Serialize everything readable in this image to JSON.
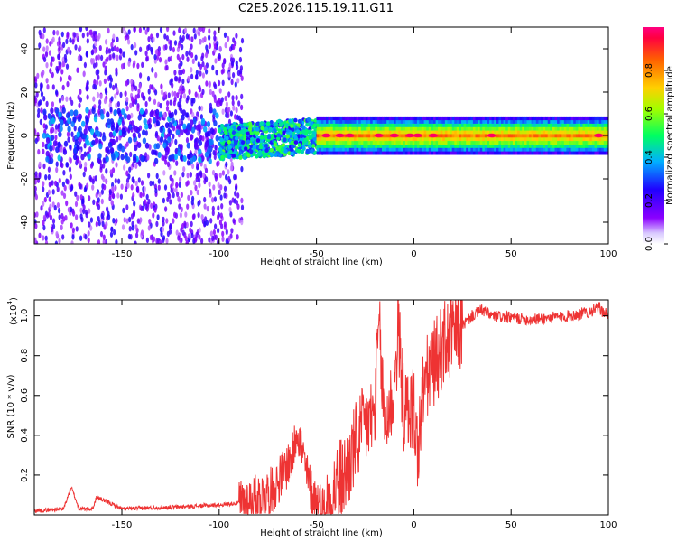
{
  "page": {
    "title": "C2E5.2026.115.19.11.G11"
  },
  "chart_data": [
    {
      "type": "heatmap",
      "xlabel": "Height of straight line (km)",
      "ylabel": "Frequency (Hz)",
      "xlim": [
        -195,
        100
      ],
      "ylim": [
        -50,
        50
      ],
      "xticks": [
        -150,
        -100,
        -50,
        0,
        50,
        100
      ],
      "yticks": [
        -40,
        -20,
        0,
        20,
        40
      ],
      "colorbar": {
        "label": "Normalized spectral amplitude",
        "range": [
          0,
          1
        ],
        "ticks": [
          0.0,
          0.2,
          0.4,
          0.6,
          0.8
        ],
        "colormap": [
          "#ffffff",
          "#8b00ff",
          "#2000ff",
          "#00b0ff",
          "#00ff60",
          "#a0ff00",
          "#ffd000",
          "#ff6000",
          "#ff0040",
          "#ff0080"
        ]
      },
      "features": [
        {
          "x_range": [
            -195,
            -90
          ],
          "description": "sparse noise",
          "amplitude": 0.15
        },
        {
          "x_range": [
            -100,
            -45
          ],
          "freq_center": 0,
          "amplitude": 0.4
        },
        {
          "x_range": [
            -50,
            100
          ],
          "freq_center": 0,
          "amplitude": 0.7
        }
      ]
    },
    {
      "type": "line",
      "xlabel": "Height of straight line (km)",
      "ylabel": "SNR (10 * v/v)",
      "multiplier": "(x10",
      "multiplier_exp": "4",
      "multiplier_close": ")",
      "xlim": [
        -195,
        100
      ],
      "ylim": [
        0,
        1.08
      ],
      "xticks": [
        -150,
        -100,
        -50,
        0,
        50,
        100
      ],
      "yticks": [
        0.2,
        0.4,
        0.6,
        0.8,
        1.0
      ],
      "series": [
        {
          "name": "SNR",
          "color": "#ee3333",
          "x": [
            -195,
            -180,
            -176,
            -172,
            -165,
            -163,
            -150,
            -120,
            -100,
            -90,
            -80,
            -72,
            -68,
            -62,
            -60,
            -55,
            -52,
            -48,
            -45,
            -40,
            -35,
            -30,
            -25,
            -20,
            -18,
            -15,
            -10,
            -8,
            -5,
            0,
            2,
            5,
            10,
            15,
            20,
            25,
            30,
            35,
            40,
            50,
            60,
            70,
            80,
            90,
            95,
            100
          ],
          "y": [
            0.02,
            0.03,
            0.14,
            0.03,
            0.03,
            0.09,
            0.03,
            0.04,
            0.05,
            0.06,
            0.09,
            0.13,
            0.2,
            0.3,
            0.45,
            0.2,
            0.1,
            0.05,
            0.02,
            0.15,
            0.2,
            0.35,
            0.45,
            0.5,
            0.95,
            0.45,
            0.62,
            0.95,
            0.5,
            0.55,
            0.3,
            0.65,
            0.75,
            0.85,
            0.9,
            0.95,
            1.0,
            1.03,
            1.0,
            0.99,
            0.98,
            0.99,
            1.0,
            1.02,
            1.04,
            1.0
          ]
        }
      ]
    }
  ]
}
